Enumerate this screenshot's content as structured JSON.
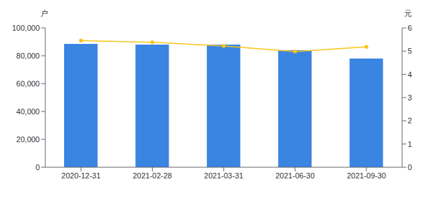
{
  "chart_data": {
    "type": "bar",
    "ylabel": "户",
    "y2label": "元",
    "categories": [
      "2020-12-31",
      "2021-02-28",
      "2021-03-31",
      "2021-06-30",
      "2021-09-30"
    ],
    "series": [
      {
        "type": "bar",
        "color": "#3a84e2",
        "values": [
          88500,
          88000,
          88000,
          84000,
          78000
        ]
      },
      {
        "type": "line",
        "axis": "y2",
        "color": "#f5c518",
        "marker": "circle",
        "values": [
          5.45,
          5.38,
          5.22,
          4.98,
          5.18
        ]
      }
    ],
    "ylim": [
      0,
      100000
    ],
    "yticks": [
      0,
      {
        "value": 20000,
        "label": "20,000"
      },
      {
        "value": 40000,
        "label": "40,000"
      },
      {
        "value": 60000,
        "label": "60,000"
      },
      {
        "value": 80000,
        "label": "80,000"
      },
      {
        "value": 100000,
        "label": "100,000"
      }
    ],
    "y2lim": [
      0,
      6
    ],
    "y2ticks": [
      0,
      1,
      2,
      3,
      4,
      5,
      6
    ],
    "grid": false
  }
}
